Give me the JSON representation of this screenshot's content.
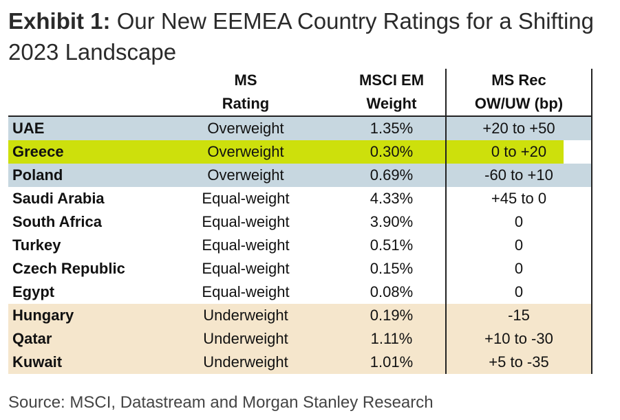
{
  "title": {
    "label": "Exhibit 1:",
    "line1": "Our New EEMEA Country Ratings for a Shifting",
    "line2": "2023 Landscape"
  },
  "table": {
    "headers": [
      {
        "line1": "",
        "line2": ""
      },
      {
        "line1": "MS",
        "line2": "Rating"
      },
      {
        "line1": "MSCI EM",
        "line2": "Weight"
      },
      {
        "line1": "MS Rec",
        "line2": "OW/UW (bp)"
      }
    ],
    "rows": [
      {
        "country": "UAE",
        "rating": "Overweight",
        "weight": "1.35%",
        "rec": "+20 to +50"
      },
      {
        "country": "Greece",
        "rating": "Overweight",
        "weight": "0.30%",
        "rec": "0 to +20"
      },
      {
        "country": "Poland",
        "rating": "Overweight",
        "weight": "0.69%",
        "rec": "-60 to +10"
      },
      {
        "country": "Saudi Arabia",
        "rating": "Equal-weight",
        "weight": "4.33%",
        "rec": "+45 to 0"
      },
      {
        "country": "South Africa",
        "rating": "Equal-weight",
        "weight": "3.90%",
        "rec": "0"
      },
      {
        "country": "Turkey",
        "rating": "Equal-weight",
        "weight": "0.51%",
        "rec": "0"
      },
      {
        "country": "Czech Republic",
        "rating": "Equal-weight",
        "weight": "0.15%",
        "rec": "0"
      },
      {
        "country": "Egypt",
        "rating": "Equal-weight",
        "weight": "0.08%",
        "rec": "0"
      },
      {
        "country": "Hungary",
        "rating": "Underweight",
        "weight": "0.19%",
        "rec": "-15"
      },
      {
        "country": "Qatar",
        "rating": "Underweight",
        "weight": "1.11%",
        "rec": "+10 to -30"
      },
      {
        "country": "Kuwait",
        "rating": "Underweight",
        "weight": "1.01%",
        "rec": "+5 to -35"
      }
    ]
  },
  "source": "Source: MSCI, Datastream and Morgan Stanley Research",
  "colors": {
    "overweight_band": "#c7d7e0",
    "underweight_band": "#f5e6cc",
    "highlight": "#cde00c"
  }
}
